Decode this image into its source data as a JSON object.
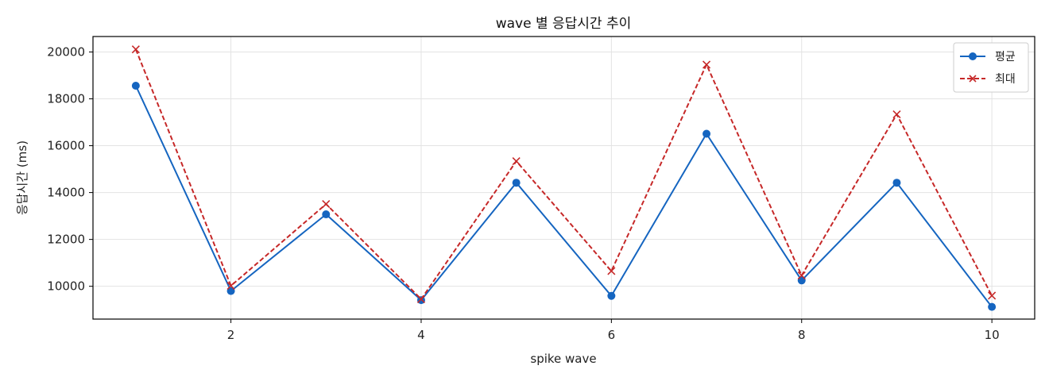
{
  "chart_data": {
    "type": "line",
    "title": "wave 별 응답시간 추이",
    "xlabel": "spike wave",
    "ylabel": "응답시간 (ms)",
    "x": [
      1,
      2,
      3,
      4,
      5,
      6,
      7,
      8,
      9,
      10
    ],
    "xticks": [
      2,
      4,
      6,
      8,
      10
    ],
    "yticks": [
      10000,
      12000,
      14000,
      16000,
      18000,
      20000
    ],
    "xlim": [
      0.55,
      10.45
    ],
    "ylim": [
      8600,
      20660
    ],
    "grid": true,
    "legend_position": "top-right",
    "series": [
      {
        "name": "평균",
        "color": "#1565c0",
        "style": "solid",
        "marker": "circle",
        "values": [
          18560,
          9800,
          13070,
          9410,
          14420,
          9590,
          16510,
          10250,
          14420,
          9120
        ]
      },
      {
        "name": "최대",
        "color": "#c62828",
        "style": "dashed",
        "marker": "x",
        "values": [
          20110,
          10020,
          13510,
          9450,
          15340,
          10650,
          19460,
          10460,
          17340,
          9600
        ]
      }
    ]
  }
}
